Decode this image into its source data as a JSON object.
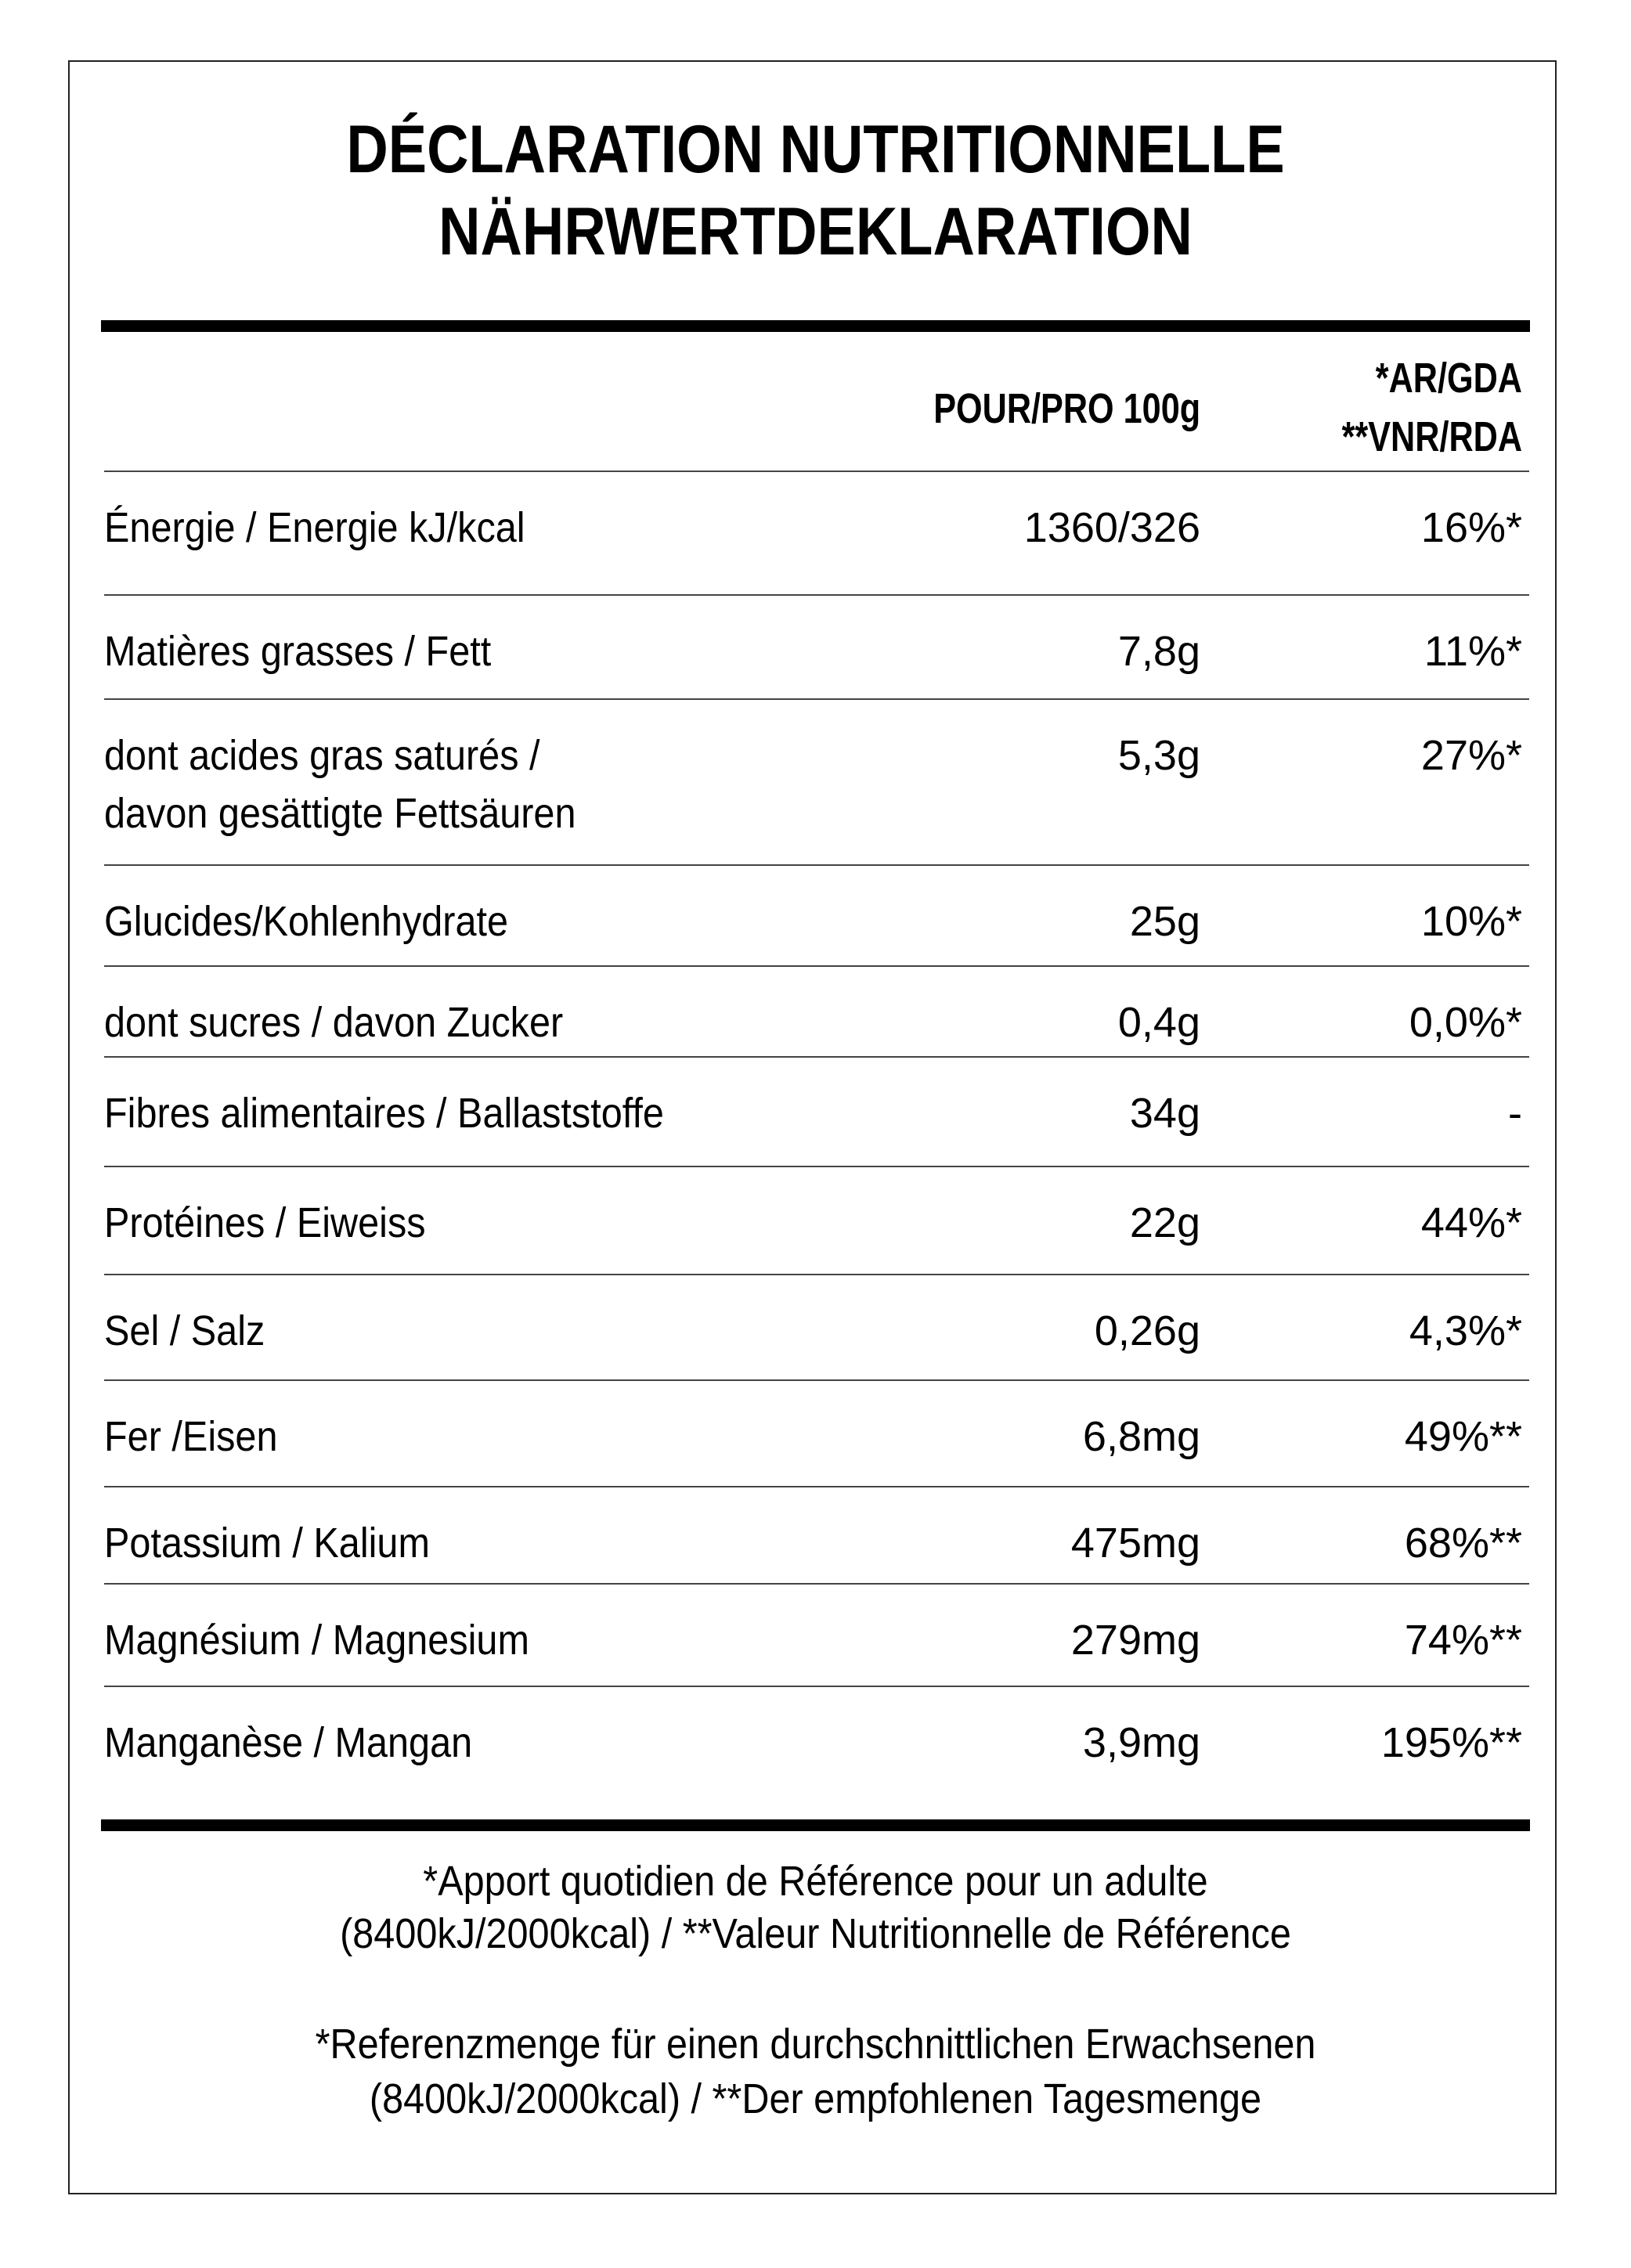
{
  "title": {
    "line1": "DÉCLARATION NUTRITIONNELLE",
    "line2": "NÄHRWERTDEKLARATION"
  },
  "header": {
    "per100": "POUR/PRO 100g",
    "ref1": "*AR/GDA",
    "ref2": "**VNR/RDA"
  },
  "rows": [
    {
      "label": "Énergie / Energie kJ/kcal",
      "value": "1360/326",
      "ref": "16%*"
    },
    {
      "label": "Matières grasses / Fett",
      "value": "7,8g",
      "ref": "11%*"
    },
    {
      "label": "dont acides gras saturés /\ndavon gesättigte Fettsäuren",
      "value": "5,3g",
      "ref": "27%*"
    },
    {
      "label": "Glucides/Kohlenhydrate",
      "value": "25g",
      "ref": "10%*"
    },
    {
      "label": "dont sucres / davon Zucker",
      "value": "0,4g",
      "ref": "0,0%*"
    },
    {
      "label": "Fibres alimentaires / Ballaststoffe",
      "value": "34g",
      "ref": "-"
    },
    {
      "label": "Protéines / Eiweiss",
      "value": "22g",
      "ref": "44%*"
    },
    {
      "label": "Sel / Salz",
      "value": "0,26g",
      "ref": "4,3%*"
    },
    {
      "label": "Fer /Eisen",
      "value": "6,8mg",
      "ref": "49%**"
    },
    {
      "label": "Potassium / Kalium",
      "value": "475mg",
      "ref": "68%**"
    },
    {
      "label": "Magnésium / Magnesium",
      "value": "279mg",
      "ref": "74%**"
    },
    {
      "label": "Manganèse / Mangan",
      "value": "3,9mg",
      "ref": "195%**"
    }
  ],
  "footer": {
    "fr1": "*Apport quotidien de Référence pour un adulte",
    "fr2": "(8400kJ/2000kcal) / **Valeur Nutritionnelle de Référence",
    "de1": "*Referenzmenge für einen durchschnittlichen Erwachsenen",
    "de2": "(8400kJ/2000kcal) / **Der empfohlenen Tagesmenge"
  }
}
